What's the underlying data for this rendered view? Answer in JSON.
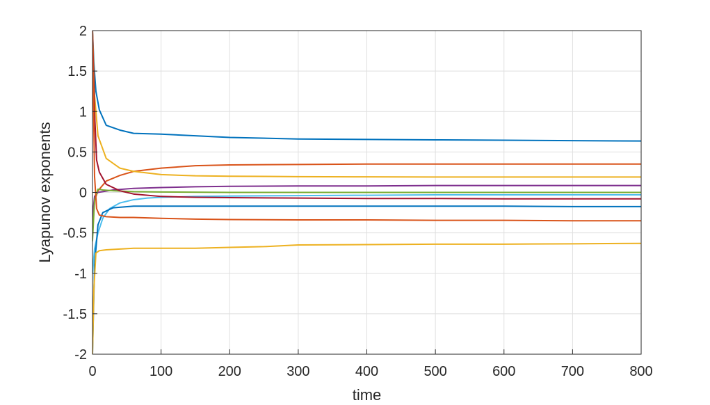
{
  "chart_data": {
    "type": "line",
    "title": "",
    "xlabel": "time",
    "ylabel": "Lyapunov exponents",
    "xlim": [
      0,
      800
    ],
    "ylim": [
      -2,
      2
    ],
    "grid": true,
    "x_ticks": [
      0,
      100,
      200,
      300,
      400,
      500,
      600,
      700,
      800
    ],
    "y_ticks": [
      2,
      1.5,
      1,
      0.5,
      0,
      -0.5,
      -1,
      -1.5,
      -2
    ],
    "x_tick_labels": [
      "0",
      "100",
      "200",
      "300",
      "400",
      "500",
      "600",
      "700",
      "800"
    ],
    "y_tick_labels": [
      "2",
      "1.5",
      "1",
      "0.5",
      "0",
      "-0.5",
      "-1",
      "-1.5",
      "-2"
    ],
    "series": [
      {
        "color": "#0072BD",
        "x": [
          0,
          2,
          5,
          10,
          20,
          40,
          60,
          100,
          150,
          200,
          300,
          400,
          500,
          600,
          700,
          800
        ],
        "y": [
          2.0,
          1.6,
          1.25,
          1.02,
          0.83,
          0.77,
          0.73,
          0.72,
          0.7,
          0.68,
          0.66,
          0.655,
          0.65,
          0.645,
          0.64,
          0.635
        ]
      },
      {
        "color": "#D95319",
        "x": [
          0,
          3,
          8,
          20,
          40,
          60,
          100,
          150,
          200,
          300,
          400,
          500,
          600,
          700,
          800
        ],
        "y": [
          -0.5,
          -0.1,
          0.02,
          0.14,
          0.21,
          0.26,
          0.3,
          0.33,
          0.34,
          0.345,
          0.35,
          0.35,
          0.35,
          0.35,
          0.35
        ]
      },
      {
        "color": "#EDB120",
        "x": [
          0,
          3,
          8,
          20,
          40,
          60,
          100,
          150,
          200,
          300,
          400,
          500,
          600,
          700,
          800
        ],
        "y": [
          2.0,
          1.2,
          0.7,
          0.42,
          0.3,
          0.26,
          0.22,
          0.205,
          0.2,
          0.195,
          0.192,
          0.19,
          0.19,
          0.19,
          0.19
        ]
      },
      {
        "color": "#7E2F8E",
        "x": [
          0,
          3,
          8,
          15,
          30,
          60,
          100,
          150,
          200,
          300,
          400,
          500,
          600,
          700,
          800
        ],
        "y": [
          -0.3,
          -0.05,
          0.0,
          0.01,
          0.03,
          0.05,
          0.06,
          0.07,
          0.075,
          0.08,
          0.08,
          0.085,
          0.085,
          0.085,
          0.085
        ]
      },
      {
        "color": "#77AC30",
        "x": [
          0,
          3,
          8,
          15,
          30,
          60,
          100,
          200,
          300,
          400,
          500,
          600,
          700,
          800
        ],
        "y": [
          -0.6,
          -0.1,
          0.04,
          0.03,
          0.02,
          0.01,
          0.005,
          0.0,
          0.0,
          0.0,
          0.0,
          0.0,
          0.0,
          0.0
        ]
      },
      {
        "color": "#4DBEEE",
        "x": [
          0,
          3,
          8,
          15,
          25,
          40,
          60,
          80,
          100,
          150,
          200,
          300,
          400,
          500,
          600,
          700,
          800
        ],
        "y": [
          -1.0,
          -0.7,
          -0.5,
          -0.32,
          -0.2,
          -0.13,
          -0.09,
          -0.07,
          -0.06,
          -0.05,
          -0.045,
          -0.04,
          -0.035,
          -0.03,
          -0.03,
          -0.03,
          -0.03
        ]
      },
      {
        "color": "#A2142F",
        "x": [
          0,
          3,
          6,
          10,
          20,
          40,
          60,
          100,
          150,
          200,
          300,
          400,
          500,
          600,
          700,
          800
        ],
        "y": [
          2.0,
          1.0,
          0.4,
          0.25,
          0.1,
          0.02,
          -0.02,
          -0.05,
          -0.06,
          -0.065,
          -0.07,
          -0.075,
          -0.075,
          -0.08,
          -0.08,
          -0.08
        ]
      },
      {
        "color": "#0072BD",
        "x": [
          0,
          3,
          8,
          15,
          30,
          60,
          100,
          200,
          300,
          400,
          500,
          600,
          700,
          800
        ],
        "y": [
          -2.0,
          -0.9,
          -0.4,
          -0.25,
          -0.19,
          -0.17,
          -0.17,
          -0.17,
          -0.17,
          -0.17,
          -0.17,
          -0.17,
          -0.175,
          -0.175
        ]
      },
      {
        "color": "#D95319",
        "x": [
          0,
          3,
          6,
          10,
          20,
          40,
          60,
          100,
          150,
          200,
          300,
          400,
          500,
          600,
          700,
          800
        ],
        "y": [
          2.0,
          0.2,
          -0.2,
          -0.28,
          -0.3,
          -0.31,
          -0.31,
          -0.32,
          -0.33,
          -0.335,
          -0.34,
          -0.34,
          -0.345,
          -0.345,
          -0.35,
          -0.35
        ]
      },
      {
        "color": "#EDB120",
        "x": [
          0,
          2,
          5,
          10,
          20,
          40,
          60,
          100,
          150,
          200,
          250,
          300,
          400,
          500,
          600,
          700,
          800
        ],
        "y": [
          -2.0,
          -1.2,
          -0.75,
          -0.72,
          -0.71,
          -0.7,
          -0.69,
          -0.69,
          -0.69,
          -0.68,
          -0.67,
          -0.65,
          -0.645,
          -0.64,
          -0.64,
          -0.635,
          -0.63
        ]
      }
    ]
  }
}
